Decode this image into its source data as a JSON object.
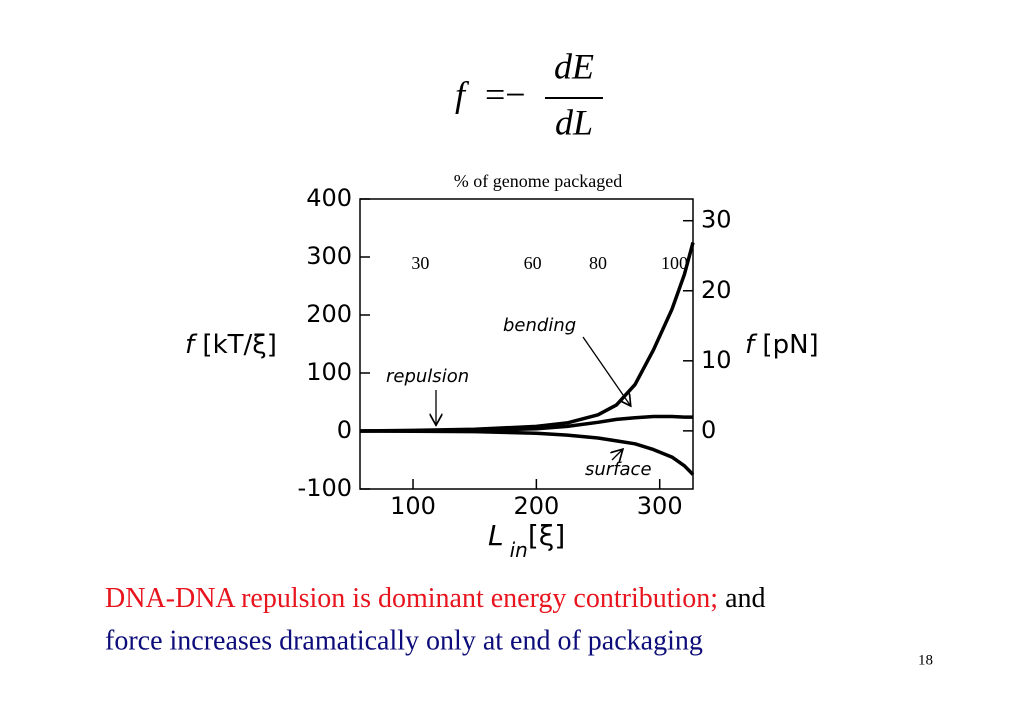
{
  "formula": {
    "lhs": "f",
    "eq": "=−",
    "num": "dE",
    "den": "dL"
  },
  "chart_data": {
    "type": "line",
    "top_axis_title": "% of genome packaged",
    "x2ticks": [
      {
        "value": 106,
        "label": "30"
      },
      {
        "value": 197,
        "label": "60"
      },
      {
        "value": 250,
        "label": "80"
      },
      {
        "value": 312,
        "label": "100"
      }
    ],
    "y_label": {
      "main": "f",
      "unit": "[kT/ξ]"
    },
    "y2_label": {
      "main": "f",
      "unit": "[pN]"
    },
    "x_label": {
      "main": "L",
      "sub": "in",
      "unit": "[ξ]"
    },
    "x": [
      57,
      100,
      150,
      200,
      225,
      250,
      265,
      280,
      295,
      310,
      320,
      327
    ],
    "series": [
      {
        "color": "#000000",
        "values": [
          0,
          1,
          3,
          8,
          14,
          28,
          45,
          80,
          140,
          210,
          270,
          325
        ]
      },
      {
        "color": "#000000",
        "values": [
          0,
          0.5,
          1,
          4,
          8,
          15,
          20,
          23,
          25,
          25,
          24,
          24
        ]
      },
      {
        "color": "#000000",
        "values": [
          0,
          -0.5,
          -1,
          -4,
          -7,
          -12,
          -17,
          -22,
          -32,
          -45,
          -60,
          -75
        ]
      }
    ],
    "xlim": [
      57,
      327
    ],
    "xticks": [
      100,
      200,
      300
    ],
    "ylim": [
      -100,
      400
    ],
    "yticks": [
      -100,
      0,
      100,
      200,
      300,
      400
    ],
    "y2lim": [
      -8.3,
      33.1
    ],
    "y2ticks": [
      0,
      10,
      20,
      30
    ],
    "annotations": [
      "repulsion",
      "bending",
      "surface"
    ]
  },
  "caption": {
    "line1_red": "DNA-DNA repulsion is dominant energy contribution;",
    "line1_black": "and",
    "line2": "force increases dramatically only at end of packaging"
  },
  "page_number": "18"
}
